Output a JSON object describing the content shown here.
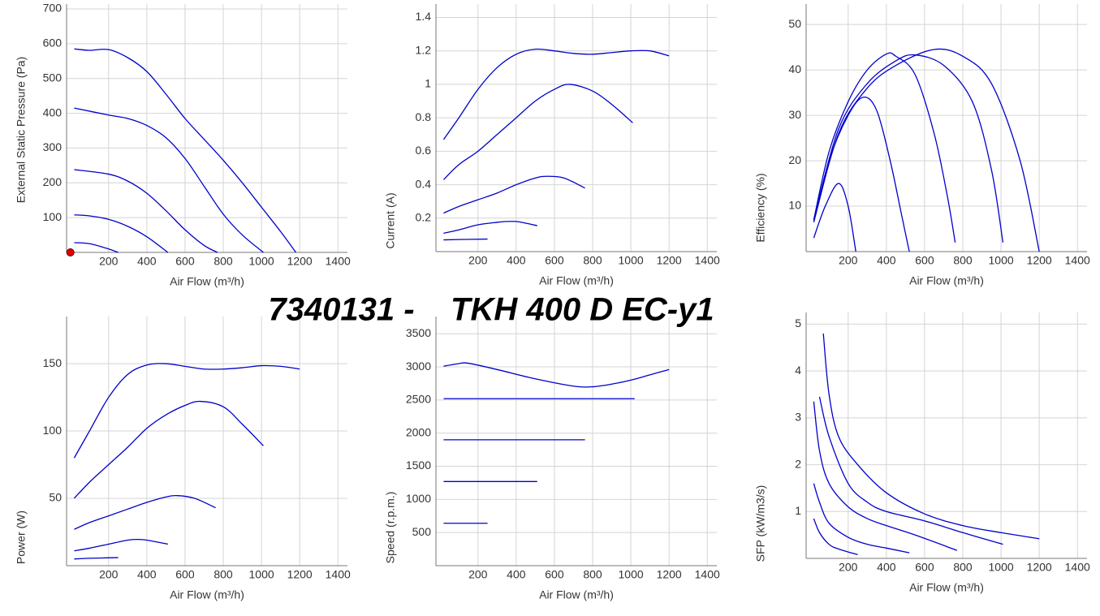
{
  "title": "7340131 -    TKH 400 D EC-y1",
  "chart_data": [
    {
      "type": "line",
      "xlabel": "Air Flow (m³/h)",
      "ylabel": "External Static Pressure (Pa)",
      "xlim": [
        -20,
        1450
      ],
      "xticks": [
        200,
        400,
        600,
        800,
        1000,
        1200,
        1400
      ],
      "ylim": [
        0,
        714
      ],
      "yticks": [
        100,
        200,
        300,
        400,
        500,
        600,
        700
      ],
      "grid": true,
      "marker": {
        "x": 0,
        "y": 0,
        "color": "#e00000"
      },
      "series": [
        {
          "color": "#0000cc",
          "x": [
            20,
            100,
            200,
            300,
            400,
            500,
            600,
            700,
            800,
            900,
            1000,
            1100,
            1180
          ],
          "values": [
            585,
            581,
            583,
            560,
            520,
            455,
            385,
            325,
            265,
            200,
            130,
            60,
            0
          ]
        },
        {
          "color": "#0000cc",
          "x": [
            20,
            200,
            300,
            400,
            500,
            600,
            700,
            800,
            900,
            1010
          ],
          "values": [
            415,
            395,
            385,
            365,
            330,
            270,
            190,
            110,
            50,
            0
          ]
        },
        {
          "color": "#0000cc",
          "x": [
            20,
            200,
            300,
            400,
            500,
            600,
            700,
            770
          ],
          "values": [
            238,
            225,
            205,
            170,
            120,
            65,
            20,
            0
          ]
        },
        {
          "color": "#0000cc",
          "x": [
            20,
            100,
            200,
            300,
            400,
            510
          ],
          "values": [
            108,
            105,
            95,
            75,
            45,
            0
          ]
        },
        {
          "color": "#0000cc",
          "x": [
            20,
            100,
            200,
            250
          ],
          "values": [
            28,
            25,
            10,
            0
          ]
        }
      ]
    },
    {
      "type": "line",
      "xlabel": "Air Flow (m³/h)",
      "ylabel": "Current (A)",
      "xlim": [
        -20,
        1450
      ],
      "xticks": [
        200,
        400,
        600,
        800,
        1000,
        1200,
        1400
      ],
      "ylim": [
        0,
        1.48
      ],
      "yticks": [
        0.2,
        0.4,
        0.6,
        0.8,
        1,
        1.2,
        1.4
      ],
      "grid": true,
      "series": [
        {
          "color": "#0000cc",
          "x": [
            20,
            100,
            200,
            300,
            400,
            500,
            600,
            700,
            800,
            900,
            1000,
            1100,
            1200
          ],
          "values": [
            0.67,
            0.8,
            0.97,
            1.1,
            1.18,
            1.21,
            1.2,
            1.185,
            1.18,
            1.19,
            1.2,
            1.2,
            1.17
          ]
        },
        {
          "color": "#0000cc",
          "x": [
            20,
            100,
            200,
            300,
            400,
            500,
            600,
            680,
            800,
            900,
            1010
          ],
          "values": [
            0.43,
            0.52,
            0.6,
            0.7,
            0.8,
            0.9,
            0.97,
            1.0,
            0.96,
            0.88,
            0.77
          ]
        },
        {
          "color": "#0000cc",
          "x": [
            20,
            100,
            200,
            300,
            400,
            500,
            560,
            650,
            760
          ],
          "values": [
            0.23,
            0.27,
            0.31,
            0.35,
            0.4,
            0.44,
            0.45,
            0.44,
            0.38
          ]
        },
        {
          "color": "#0000cc",
          "x": [
            20,
            100,
            200,
            300,
            350,
            400,
            450,
            510
          ],
          "values": [
            0.11,
            0.13,
            0.16,
            0.175,
            0.18,
            0.18,
            0.17,
            0.155
          ]
        },
        {
          "color": "#0000cc",
          "x": [
            20,
            100,
            250
          ],
          "values": [
            0.07,
            0.072,
            0.075
          ]
        }
      ]
    },
    {
      "type": "line",
      "xlabel": "Air Flow (m³/h)",
      "ylabel": "Efficiency (%)",
      "xlim": [
        -20,
        1450
      ],
      "xticks": [
        200,
        400,
        600,
        800,
        1000,
        1200,
        1400
      ],
      "ylim": [
        0,
        54.5
      ],
      "yticks": [
        10,
        20,
        30,
        40,
        50
      ],
      "grid": true,
      "series": [
        {
          "color": "#0000cc",
          "x": [
            20,
            80,
            150,
            200,
            240
          ],
          "values": [
            3,
            10,
            15,
            10,
            0
          ]
        },
        {
          "color": "#0000cc",
          "x": [
            20,
            100,
            200,
            280,
            350,
            420,
            480,
            520
          ],
          "values": [
            6.5,
            20,
            30,
            34,
            31,
            20,
            8,
            0
          ]
        },
        {
          "color": "#0000cc",
          "x": [
            20,
            100,
            200,
            300,
            400,
            450,
            550,
            650,
            720,
            760
          ],
          "values": [
            7,
            22,
            33,
            40,
            43.5,
            43,
            39,
            26,
            12,
            2
          ]
        },
        {
          "color": "#0000cc",
          "x": [
            20,
            150,
            300,
            450,
            550,
            700,
            850,
            950,
            1010
          ],
          "values": [
            7,
            27,
            37,
            42,
            43.3,
            41,
            33,
            18,
            2
          ]
        },
        {
          "color": "#0000cc",
          "x": [
            20,
            150,
            300,
            450,
            650,
            800,
            950,
            1100,
            1200
          ],
          "values": [
            6.5,
            26,
            36,
            41,
            44.5,
            43,
            37,
            20,
            0
          ]
        }
      ]
    },
    {
      "type": "line",
      "xlabel": "Air Flow (m³/h)",
      "ylabel": "Power (W)",
      "xlim": [
        -20,
        1450
      ],
      "xticks": [
        200,
        400,
        600,
        800,
        1000,
        1200,
        1400
      ],
      "ylim": [
        0,
        185
      ],
      "yticks": [
        50,
        100,
        150
      ],
      "grid": true,
      "series": [
        {
          "color": "#0000cc",
          "x": [
            20,
            100,
            200,
            300,
            400,
            500,
            600,
            700,
            800,
            900,
            1000,
            1100,
            1200
          ],
          "values": [
            80,
            100,
            125,
            142,
            149,
            150,
            148,
            146,
            146,
            147,
            148.5,
            148,
            146
          ]
        },
        {
          "color": "#0000cc",
          "x": [
            20,
            100,
            200,
            300,
            400,
            500,
            600,
            680,
            800,
            900,
            1010
          ],
          "values": [
            50,
            62,
            75,
            88,
            102,
            112,
            119,
            122,
            118,
            105,
            89
          ]
        },
        {
          "color": "#0000cc",
          "x": [
            20,
            100,
            200,
            300,
            400,
            500,
            560,
            650,
            760
          ],
          "values": [
            27,
            32,
            37,
            42,
            47,
            51,
            52,
            50,
            43
          ]
        },
        {
          "color": "#0000cc",
          "x": [
            20,
            100,
            200,
            300,
            350,
            400,
            510
          ],
          "values": [
            11,
            13,
            16,
            19,
            19.5,
            19,
            16
          ]
        },
        {
          "color": "#0000cc",
          "x": [
            20,
            100,
            250
          ],
          "values": [
            5,
            5.5,
            6
          ]
        }
      ]
    },
    {
      "type": "line",
      "xlabel": "Air Flow (m³/h)",
      "ylabel": "Speed (r.p.m.)",
      "xlim": [
        -20,
        1450
      ],
      "xticks": [
        200,
        400,
        600,
        800,
        1000,
        1200,
        1400
      ],
      "ylim": [
        0,
        3760
      ],
      "yticks": [
        500,
        1000,
        1500,
        2000,
        2500,
        3000,
        3500
      ],
      "grid": true,
      "series": [
        {
          "color": "#0000cc",
          "x": [
            20,
            100,
            150,
            300,
            500,
            700,
            800,
            900,
            1000,
            1100,
            1200
          ],
          "values": [
            3010,
            3050,
            3055,
            2960,
            2820,
            2710,
            2700,
            2740,
            2800,
            2880,
            2960
          ]
        },
        {
          "color": "#0000cc",
          "x": [
            20,
            1020
          ],
          "values": [
            2520,
            2520
          ]
        },
        {
          "color": "#0000cc",
          "x": [
            20,
            760
          ],
          "values": [
            1900,
            1900
          ]
        },
        {
          "color": "#0000cc",
          "x": [
            20,
            510
          ],
          "values": [
            1270,
            1270
          ]
        },
        {
          "color": "#0000cc",
          "x": [
            20,
            250
          ],
          "values": [
            640,
            640
          ]
        }
      ]
    },
    {
      "type": "line",
      "xlabel": "Air Flow (m³/h)",
      "ylabel": "SFP (kW/m3/s)",
      "xlim": [
        -20,
        1450
      ],
      "xticks": [
        200,
        400,
        600,
        800,
        1000,
        1200,
        1400
      ],
      "ylim": [
        0,
        5.25
      ],
      "yticks": [
        1,
        2,
        3,
        4,
        5
      ],
      "grid": true,
      "series": [
        {
          "color": "#0000cc",
          "x": [
            20,
            50,
            100,
            150,
            250
          ],
          "values": [
            0.85,
            0.55,
            0.3,
            0.2,
            0.08
          ]
        },
        {
          "color": "#0000cc",
          "x": [
            20,
            50,
            100,
            200,
            300,
            400,
            520
          ],
          "values": [
            1.6,
            1.2,
            0.75,
            0.45,
            0.3,
            0.22,
            0.12
          ]
        },
        {
          "color": "#0000cc",
          "x": [
            20,
            50,
            100,
            200,
            300,
            400,
            550,
            770
          ],
          "values": [
            3.35,
            2.3,
            1.6,
            1.1,
            0.85,
            0.7,
            0.5,
            0.17
          ]
        },
        {
          "color": "#0000cc",
          "x": [
            50,
            100,
            200,
            300,
            400,
            600,
            800,
            1010
          ],
          "values": [
            3.45,
            2.6,
            1.6,
            1.2,
            1.0,
            0.8,
            0.55,
            0.3
          ]
        },
        {
          "color": "#0000cc",
          "x": [
            70,
            100,
            150,
            250,
            400,
            600,
            800,
            1000,
            1200
          ],
          "values": [
            4.8,
            3.5,
            2.6,
            2.0,
            1.4,
            0.95,
            0.7,
            0.55,
            0.42
          ]
        }
      ]
    }
  ]
}
